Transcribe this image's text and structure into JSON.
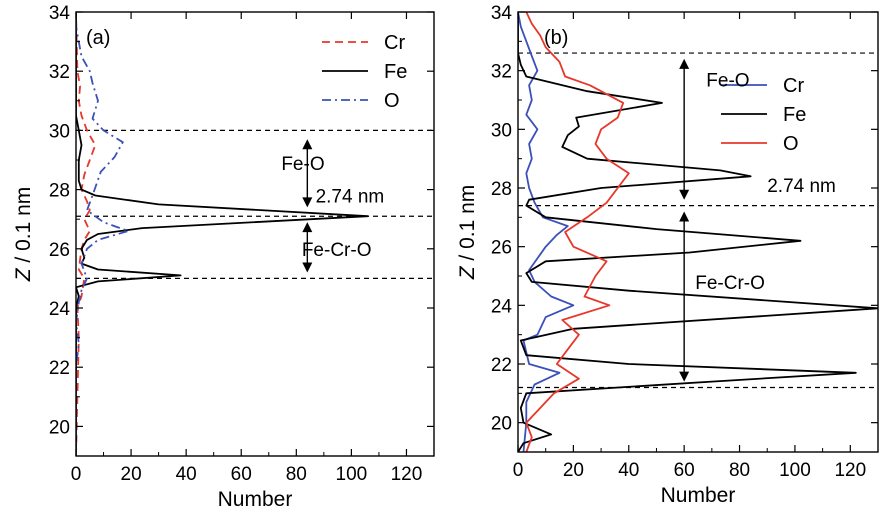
{
  "chart_data": [
    {
      "type": "line",
      "panel_label": "(a)",
      "xlabel": "Number",
      "ylabel_italic": "Z",
      "ylabel_rest": " / 0.1 nm",
      "xlim": [
        0,
        130
      ],
      "ylim": [
        19,
        34
      ],
      "xticks": [
        0,
        20,
        40,
        60,
        80,
        100,
        120
      ],
      "yticks": [
        20,
        22,
        24,
        26,
        28,
        30,
        32,
        34
      ],
      "legend": "top-right",
      "series": [
        {
          "name": "Cr",
          "color": "#e8372a",
          "dash": "8,5",
          "points": [
            [
              0,
              19
            ],
            [
              0.5,
              21
            ],
            [
              1,
              23
            ],
            [
              0.5,
              24
            ],
            [
              2,
              24.4
            ],
            [
              3,
              25
            ],
            [
              1,
              25.3
            ],
            [
              2,
              26
            ],
            [
              3,
              26.3
            ],
            [
              5,
              26.6
            ],
            [
              3,
              27
            ],
            [
              5,
              27.3
            ],
            [
              4,
              27.6
            ],
            [
              2,
              28
            ],
            [
              3,
              28.5
            ],
            [
              5,
              29
            ],
            [
              7,
              29.5
            ],
            [
              4,
              30
            ],
            [
              2,
              30.5
            ],
            [
              1,
              31
            ],
            [
              1.5,
              31.5
            ],
            [
              0.5,
              32
            ],
            [
              0,
              34
            ]
          ]
        },
        {
          "name": "Fe",
          "color": "#000000",
          "dash": "",
          "points": [
            [
              0,
              19
            ],
            [
              0,
              24
            ],
            [
              1,
              24.4
            ],
            [
              0,
              24.7
            ],
            [
              8,
              24.9
            ],
            [
              38,
              25.1
            ],
            [
              8,
              25.3
            ],
            [
              2,
              25.5
            ],
            [
              3,
              25.7
            ],
            [
              2,
              26
            ],
            [
              4,
              26.3
            ],
            [
              8,
              26.5
            ],
            [
              24,
              26.7
            ],
            [
              106,
              27.1
            ],
            [
              30,
              27.5
            ],
            [
              7,
              27.8
            ],
            [
              2,
              28
            ],
            [
              1,
              28.3
            ],
            [
              1,
              29
            ],
            [
              2,
              29.5
            ],
            [
              1,
              30
            ],
            [
              0,
              30.5
            ],
            [
              0,
              34
            ]
          ]
        },
        {
          "name": "O",
          "color": "#3b50b8",
          "dash": "9,4,2,4",
          "points": [
            [
              0,
              19
            ],
            [
              0,
              22
            ],
            [
              1,
              22.8
            ],
            [
              0,
              23.5
            ],
            [
              1,
              24.2
            ],
            [
              2,
              24.6
            ],
            [
              4,
              25
            ],
            [
              2,
              25.5
            ],
            [
              4,
              26
            ],
            [
              8,
              26.3
            ],
            [
              19,
              26.6
            ],
            [
              10,
              26.9
            ],
            [
              4,
              27.3
            ],
            [
              6,
              27.8
            ],
            [
              9,
              28.6
            ],
            [
              14,
              29.1
            ],
            [
              17,
              29.6
            ],
            [
              10,
              30
            ],
            [
              6,
              30.4
            ],
            [
              8,
              31
            ],
            [
              6,
              31.6
            ],
            [
              5,
              32
            ],
            [
              2,
              32.5
            ],
            [
              0,
              33.5
            ],
            [
              0,
              34
            ]
          ]
        }
      ],
      "hlines": [
        25,
        27.1,
        30
      ],
      "annotations": {
        "arrow1": {
          "x": 84,
          "y1": 27.4,
          "y2": 29.7,
          "label": "Fe-O",
          "label_x": 84,
          "label_y": 28.9
        },
        "arrow2": {
          "x": 84,
          "y1": 25.2,
          "y2": 26.9,
          "label": "Fe-Cr-O",
          "label_x": 82,
          "label_y": 26.0
        },
        "thickness": {
          "text": "2.74 nm",
          "x": 87,
          "y": 27.8
        }
      }
    },
    {
      "type": "line",
      "panel_label": "(b)",
      "xlabel": "Number",
      "ylabel_italic": "Z",
      "ylabel_rest": " / 0.1 nm",
      "xlim": [
        0,
        130
      ],
      "ylim": [
        19,
        34
      ],
      "xticks": [
        0,
        20,
        40,
        60,
        80,
        100,
        120
      ],
      "yticks": [
        20,
        22,
        24,
        26,
        28,
        30,
        32,
        34
      ],
      "legend": "top-right",
      "series": [
        {
          "name": "Cr",
          "color": "#3b50b8",
          "dash": "",
          "points": [
            [
              2,
              19
            ],
            [
              3,
              20
            ],
            [
              3,
              20.7
            ],
            [
              6,
              21.3
            ],
            [
              15,
              21.7
            ],
            [
              4,
              22
            ],
            [
              3,
              22.4
            ],
            [
              2,
              22.8
            ],
            [
              7,
              23
            ],
            [
              10,
              23.6
            ],
            [
              20,
              24
            ],
            [
              12,
              24.3
            ],
            [
              6,
              24.8
            ],
            [
              4,
              25.2
            ],
            [
              7,
              25.6
            ],
            [
              10,
              26
            ],
            [
              14,
              26.4
            ],
            [
              18,
              26.7
            ],
            [
              9,
              27
            ],
            [
              6,
              27.5
            ],
            [
              4,
              28
            ],
            [
              3,
              28.5
            ],
            [
              5,
              29
            ],
            [
              4,
              29.5
            ],
            [
              7,
              30
            ],
            [
              3,
              30.5
            ],
            [
              5,
              31
            ],
            [
              4,
              31.5
            ],
            [
              7,
              32
            ],
            [
              5,
              32.5
            ],
            [
              3,
              33
            ],
            [
              1,
              33.5
            ],
            [
              0,
              34
            ]
          ]
        },
        {
          "name": "Fe",
          "color": "#000000",
          "dash": "",
          "points": [
            [
              0,
              19
            ],
            [
              2,
              19.3
            ],
            [
              12,
              19.6
            ],
            [
              2,
              20
            ],
            [
              1,
              20.5
            ],
            [
              3,
              21
            ],
            [
              70,
              21.4
            ],
            [
              122,
              21.7
            ],
            [
              40,
              22
            ],
            [
              3,
              22.3
            ],
            [
              1,
              22.8
            ],
            [
              20,
              23.2
            ],
            [
              130,
              23.9
            ],
            [
              40,
              24.5
            ],
            [
              5,
              24.8
            ],
            [
              3,
              25.1
            ],
            [
              10,
              25.5
            ],
            [
              62,
              25.8
            ],
            [
              102,
              26.2
            ],
            [
              50,
              26.6
            ],
            [
              10,
              27
            ],
            [
              3,
              27.4
            ],
            [
              4,
              27.6
            ],
            [
              30,
              28
            ],
            [
              84,
              28.4
            ],
            [
              73,
              28.6
            ],
            [
              25,
              29
            ],
            [
              16,
              29.4
            ],
            [
              18,
              29.8
            ],
            [
              22,
              30.1
            ],
            [
              21,
              30.4
            ],
            [
              52,
              30.9
            ],
            [
              25,
              31.3
            ],
            [
              3,
              31.8
            ],
            [
              1,
              32.2
            ],
            [
              0,
              32.6
            ],
            [
              0,
              34
            ]
          ]
        },
        {
          "name": "O",
          "color": "#e8372a",
          "dash": "",
          "points": [
            [
              3,
              19
            ],
            [
              5,
              19.5
            ],
            [
              3,
              20
            ],
            [
              8,
              20.5
            ],
            [
              13,
              21
            ],
            [
              22,
              21.5
            ],
            [
              14,
              22
            ],
            [
              18,
              22.5
            ],
            [
              22,
              23
            ],
            [
              16,
              23.5
            ],
            [
              33,
              24
            ],
            [
              24,
              24.3
            ],
            [
              28,
              25
            ],
            [
              32,
              25.5
            ],
            [
              20,
              26
            ],
            [
              17,
              26.5
            ],
            [
              25,
              27
            ],
            [
              32,
              27.5
            ],
            [
              36,
              28
            ],
            [
              40,
              28.5
            ],
            [
              32,
              29
            ],
            [
              28,
              29.5
            ],
            [
              30,
              30
            ],
            [
              36,
              30.4
            ],
            [
              38,
              30.9
            ],
            [
              26,
              31.5
            ],
            [
              17,
              31.8
            ],
            [
              15,
              32.3
            ],
            [
              10,
              32.8
            ],
            [
              8,
              33.2
            ],
            [
              5,
              33.6
            ],
            [
              3,
              34
            ]
          ]
        }
      ],
      "hlines": [
        21.2,
        27.4,
        32.6
      ],
      "annotations": {
        "arrow1": {
          "x": 60,
          "y1": 27.6,
          "y2": 32.4,
          "label": "Fe-O",
          "label_x": 68,
          "label_y": 31.7
        },
        "arrow2": {
          "x": 60,
          "y1": 21.4,
          "y2": 27.2,
          "label": "Fe-Cr-O",
          "label_x": 64,
          "label_y": 24.8
        },
        "thickness": {
          "text": "2.74 nm",
          "x": 90,
          "y": 28.1
        }
      }
    }
  ]
}
